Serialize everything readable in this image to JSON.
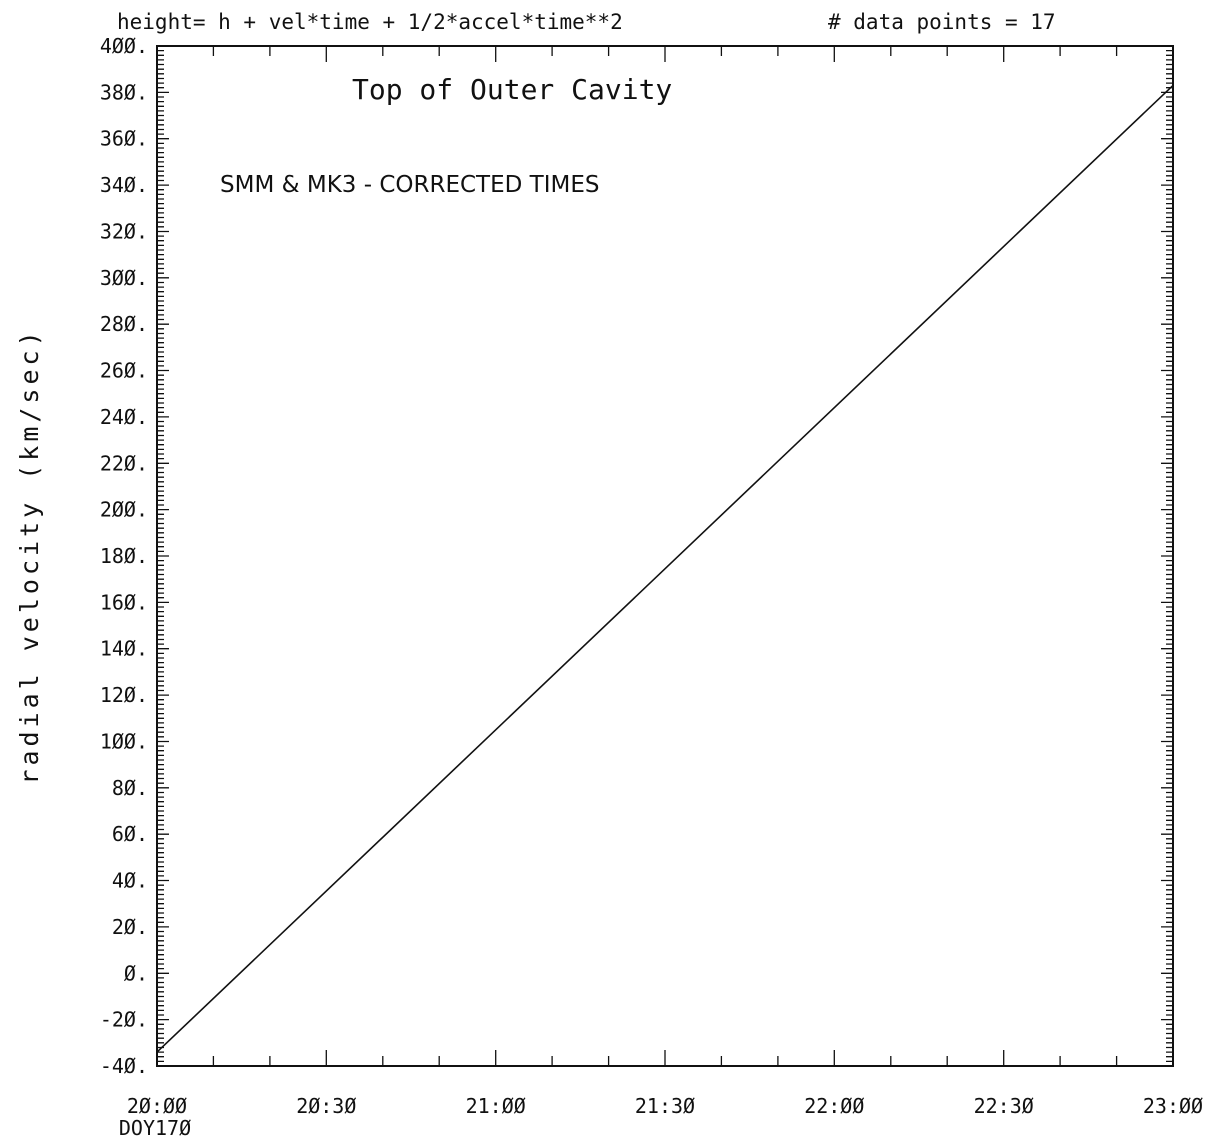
{
  "header": {
    "formula": "height= h + vel*time + 1/2*accel*time**2",
    "points_label": "# data points =  17"
  },
  "chart_data": {
    "type": "line",
    "title": "Top of Outer Cavity",
    "annotation": "SMM & MK3 - CORRECTED TIMES",
    "ylabel": "radial velocity (km/sec)",
    "xlabel": "",
    "x_start_label": "DOY17Ø",
    "xlim": [
      "20:00",
      "23:00"
    ],
    "ylim": [
      -40,
      400
    ],
    "grid": false,
    "x_tick_labels": [
      "2Ø:ØØ",
      "2Ø:3Ø",
      "21:ØØ",
      "21:3Ø",
      "22:ØØ",
      "22:3Ø",
      "23:ØØ"
    ],
    "x_tick_hours": [
      20.0,
      20.5,
      21.0,
      21.5,
      22.0,
      22.5,
      23.0
    ],
    "y_tick_labels": [
      "4ØØ.",
      "38Ø.",
      "36Ø.",
      "34Ø.",
      "32Ø.",
      "3ØØ.",
      "28Ø.",
      "26Ø.",
      "24Ø.",
      "22Ø.",
      "2ØØ.",
      "18Ø.",
      "16Ø.",
      "14Ø.",
      "12Ø.",
      "1ØØ.",
      "8Ø.",
      "6Ø.",
      "4Ø.",
      "2Ø.",
      "Ø.",
      "-2Ø.",
      "-4Ø."
    ],
    "y_tick_values": [
      400,
      380,
      360,
      340,
      320,
      300,
      280,
      260,
      240,
      220,
      200,
      180,
      160,
      140,
      120,
      100,
      80,
      60,
      40,
      20,
      0,
      -20,
      -40
    ],
    "series": [
      {
        "x": [
          "20:00",
          "23:00"
        ],
        "y": [
          -34,
          383
        ]
      }
    ]
  }
}
